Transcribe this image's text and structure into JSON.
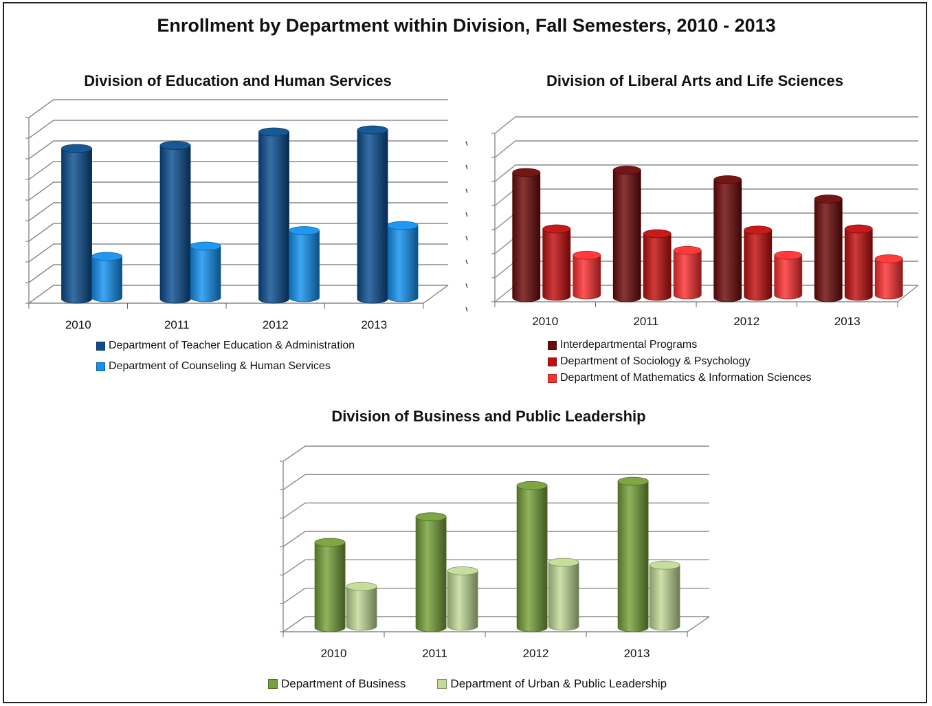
{
  "page_title": "Enrollment by Department within Division, Fall Semesters, 2010 - 2013",
  "chart_data": [
    {
      "type": "bar",
      "title": "Division of Education and Human Services",
      "categories": [
        "2010",
        "2011",
        "2012",
        "2013"
      ],
      "ylim": [
        0,
        900
      ],
      "grid": true,
      "legend": "bottom",
      "series": [
        {
          "name": "Department of Teacher Education & Administration",
          "color": "#0b4f91",
          "values": [
            730,
            745,
            810,
            820
          ]
        },
        {
          "name": "Department of Counseling & Human Services",
          "color": "#1493f2",
          "values": [
            200,
            250,
            325,
            350
          ]
        }
      ]
    },
    {
      "type": "bar",
      "title": "Division of Liberal Arts and Life Sciences",
      "categories": [
        "2010",
        "2011",
        "2012",
        "2013"
      ],
      "ylim": [
        0,
        700
      ],
      "grid": true,
      "legend": "bottom",
      "series": [
        {
          "name": "Interdepartmental Programs",
          "color": "#6e0a0a",
          "values": [
            520,
            530,
            490,
            410
          ]
        },
        {
          "name": "Department of Sociology & Psychology",
          "color": "#c30f0f",
          "values": [
            280,
            260,
            275,
            280
          ]
        },
        {
          "name": "Department of Mathematics & Information Sciences",
          "color": "#ff3131",
          "values": [
            165,
            185,
            165,
            150
          ]
        }
      ]
    },
    {
      "type": "bar",
      "title": "Division of Business and Public Leadership",
      "categories": [
        "2010",
        "2011",
        "2012",
        "2013"
      ],
      "ylim": [
        0,
        600
      ],
      "grid": true,
      "legend": "bottom",
      "series": [
        {
          "name": "Department of Business",
          "color": "#77a23a",
          "values": [
            300,
            390,
            500,
            515
          ]
        },
        {
          "name": "Department of Urban & Public Leadership",
          "color": "#c2dc96",
          "values": [
            140,
            195,
            225,
            215
          ]
        }
      ]
    }
  ]
}
